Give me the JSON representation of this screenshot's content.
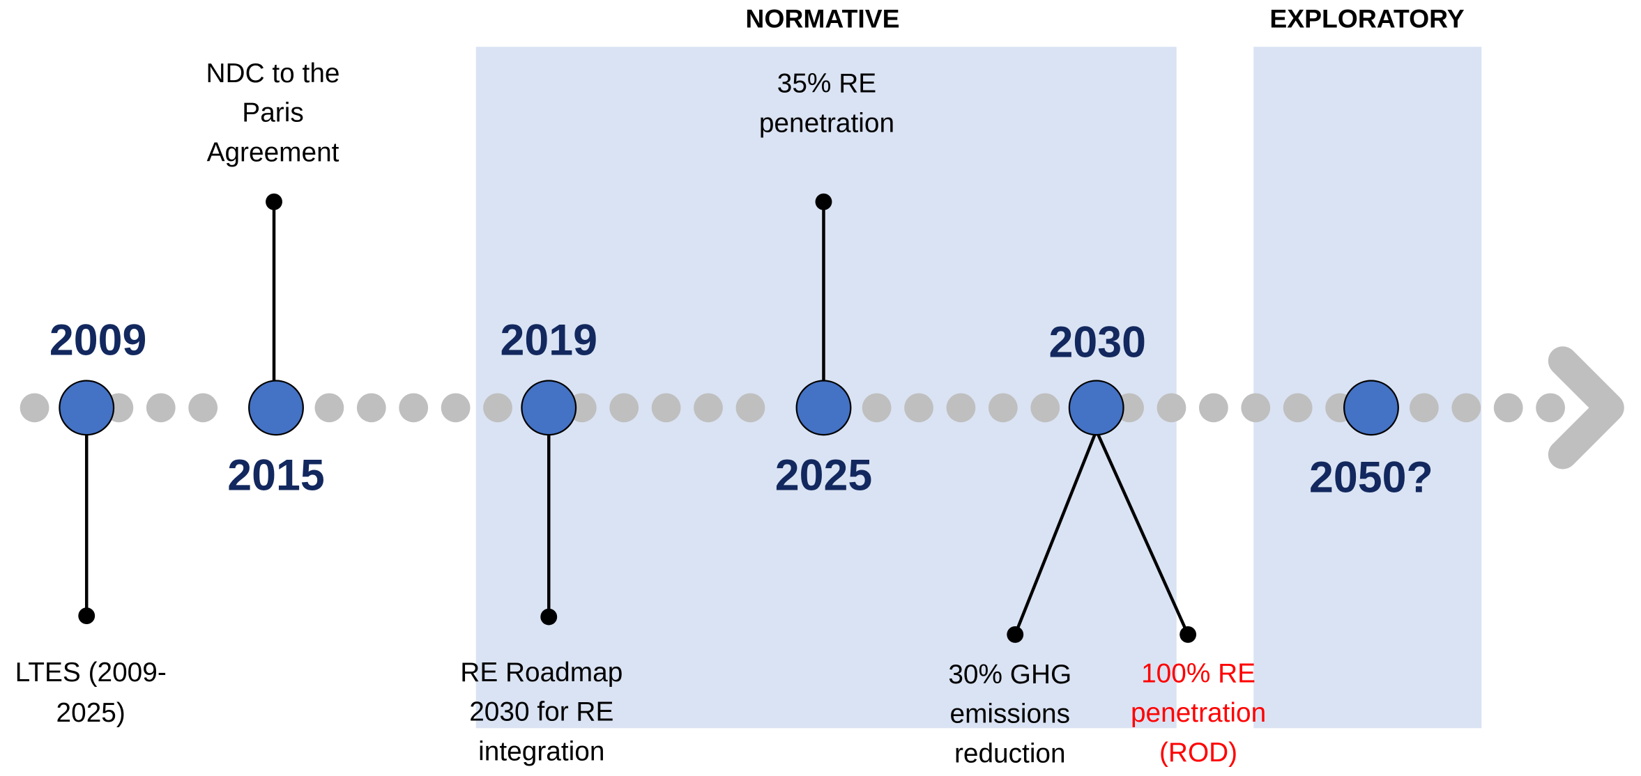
{
  "regions": [
    {
      "label": "NORMATIVE"
    },
    {
      "label": "EXPLORATORY"
    }
  ],
  "milestones": [
    {
      "year": "2009",
      "events": [
        {
          "lines": [
            "LTES (2009-",
            "2025)"
          ]
        }
      ]
    },
    {
      "year": "2015",
      "events": [
        {
          "lines": [
            "NDC to the",
            "Paris",
            "Agreement"
          ]
        }
      ]
    },
    {
      "year": "2019",
      "events": [
        {
          "lines": [
            "RE Roadmap",
            "2030 for RE",
            "integration"
          ]
        }
      ]
    },
    {
      "year": "2025",
      "events": [
        {
          "lines": [
            "35% RE",
            "penetration"
          ]
        }
      ]
    },
    {
      "year": "2030",
      "events": [
        {
          "lines": [
            "30% GHG",
            "emissions",
            "reduction"
          ]
        },
        {
          "lines": [
            "100% RE",
            "penetration",
            "(ROD)"
          ]
        }
      ]
    },
    {
      "year": "2050?",
      "events": []
    }
  ]
}
